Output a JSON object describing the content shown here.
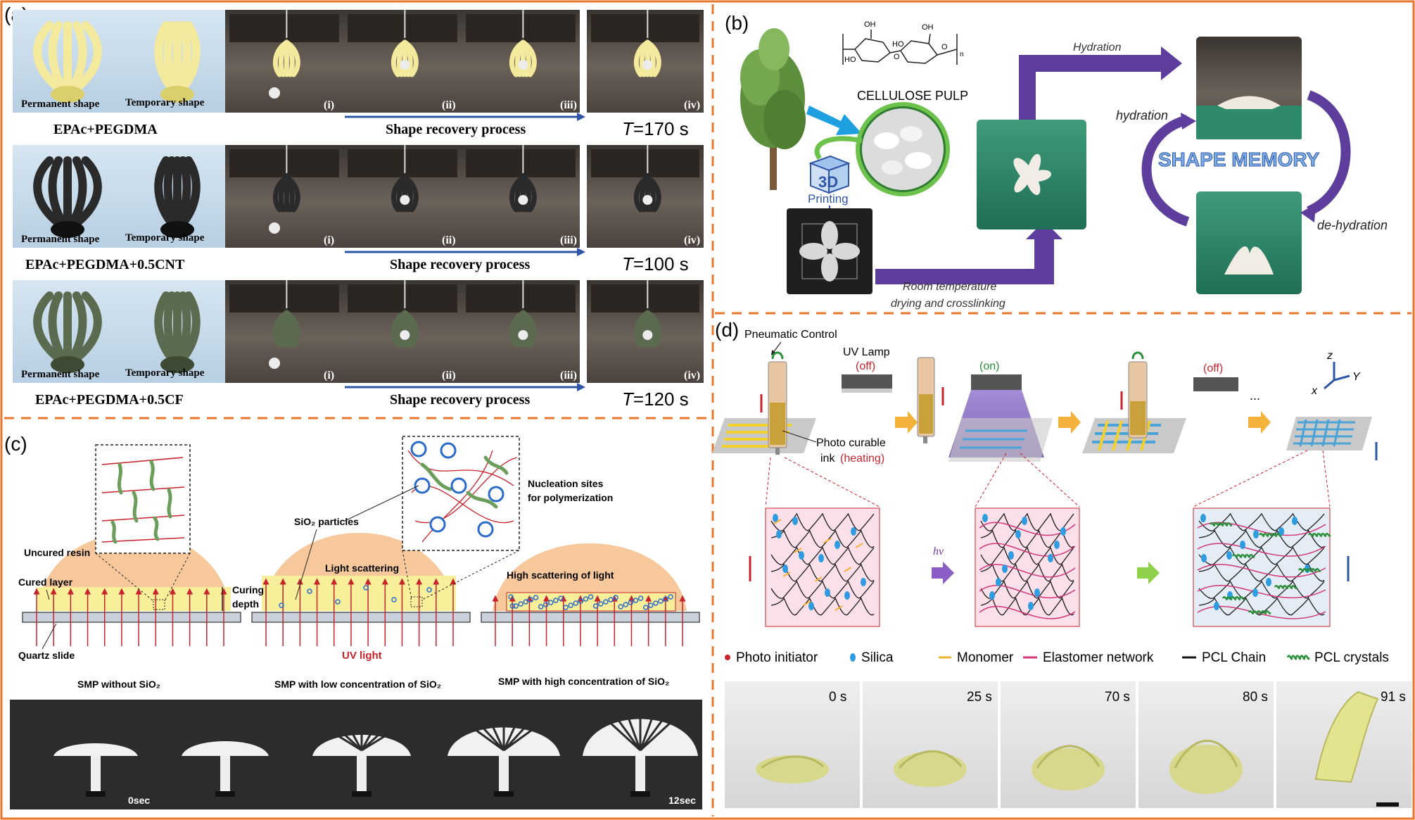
{
  "colors": {
    "border_orange": "#e8772e",
    "arrow_blue": "#2f56a6",
    "arrow_purple": "#6a3fa0",
    "cellulose_green": "#6cc24a"
  },
  "panel_a": {
    "label": "(a)",
    "rows": [
      {
        "perm": "Permanent shape",
        "temp": "Temporary shape",
        "name": "EPAc+PEGDMA",
        "process": "Shape recovery process",
        "time": "=170 s",
        "steps": [
          "(i)",
          "(ii)",
          "(iii)",
          "(iv)"
        ]
      },
      {
        "perm": "Permanent shape",
        "temp": "Temporary shape",
        "name": "EPAc+PEGDMA+0.5CNT",
        "process": "Shape recovery process",
        "time": "=100 s",
        "steps": [
          "(i)",
          "(ii)",
          "(iii)",
          "(iv)"
        ]
      },
      {
        "perm": "Permanent shape",
        "temp": "Temporary shape",
        "name": "EPAc+PEGDMA+0.5CF",
        "process": "Shape recovery process",
        "time": "=120 s",
        "steps": [
          "(i)",
          "(ii)",
          "(iii)",
          "(iv)"
        ]
      }
    ],
    "T": "T"
  },
  "panel_b": {
    "label": "(b)",
    "cellulose": "CELLULOSE PULP",
    "printing_3d": "3D",
    "printing": "Printing",
    "hydration_top": "Hydration",
    "hydration_side": "hydration",
    "dehydration": "de-hydration",
    "shape_memory": "SHAPE MEMORY",
    "room_temp_1": "Room temperature",
    "room_temp_2": "drying and crosslinking",
    "chem": {
      "oh": "OH",
      "ho": "HO",
      "o": "O",
      "n": "n"
    }
  },
  "panel_c": {
    "label": "(c)",
    "uncured": "Uncured resin",
    "cured": "Cured layer",
    "curing": "Curing",
    "depth": "depth",
    "quartz": "Quartz slide",
    "sio2": "SiO₂ particles",
    "light_scatter": "Light scattering",
    "nucleation_1": "Nucleation sites",
    "nucleation_2": "for polymerization",
    "high_scatter": "High scattering of light",
    "uv": "UV light",
    "cap1": "SMP without SiO₂",
    "cap2": "SMP with low concentration of SiO₂",
    "cap3": "SMP with high concentration of SiO₂",
    "t0": "0sec",
    "t12": "12sec"
  },
  "panel_d": {
    "label": "(d)",
    "pneumatic": "Pneumatic Control",
    "uv_lamp": "UV Lamp",
    "off": "(off)",
    "on": "(on)",
    "photo_ink_1": "Photo curable",
    "photo_ink_2": "ink",
    "heating": "(heating)",
    "ellipsis": "...",
    "axis": {
      "z": "z",
      "y": "Y",
      "x": "x"
    },
    "hv": "hv",
    "legend": [
      "Photo initiator",
      "Silica",
      "Monomer",
      "Elastomer network",
      "PCL Chain",
      "PCL crystals"
    ],
    "times": [
      "0 s",
      "25 s",
      "70 s",
      "80 s",
      "91 s"
    ]
  }
}
